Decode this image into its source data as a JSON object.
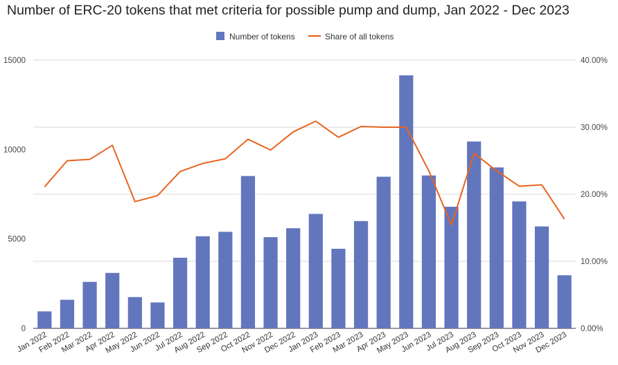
{
  "chart_data": {
    "type": "bar",
    "title": "Number of ERC-20 tokens that met criteria for possible pump and dump, Jan 2022 - Dec 2023",
    "categories": [
      "Jan 2022",
      "Feb 2022",
      "Mar 2022",
      "Apr 2022",
      "May 2022",
      "Jun 2022",
      "Jul 2022",
      "Aug 2022",
      "Sep 2022",
      "Oct 2022",
      "Nov 2022",
      "Dec 2022",
      "Jan 2023",
      "Feb 2023",
      "Mar 2023",
      "Apr 2023",
      "May 2023",
      "Jun 2023",
      "Jul 2023",
      "Aug 2023",
      "Sep 2023",
      "Oct 2023",
      "Nov 2023",
      "Dec 2023"
    ],
    "series": [
      {
        "name": "Number of tokens",
        "type": "bar",
        "axis": "left",
        "color": "#6276be",
        "values": [
          950,
          1600,
          2600,
          3100,
          1750,
          1450,
          3950,
          5150,
          5400,
          8520,
          5100,
          5600,
          6400,
          4450,
          6000,
          8480,
          14150,
          8550,
          6800,
          10450,
          9000,
          7100,
          5700,
          2970
        ]
      },
      {
        "name": "Share of all tokens",
        "type": "line",
        "axis": "right",
        "color": "#e8641e",
        "values": [
          21.1,
          25.0,
          25.2,
          27.3,
          18.9,
          19.8,
          23.4,
          24.6,
          25.3,
          28.2,
          26.6,
          29.3,
          30.9,
          28.5,
          30.1,
          30.0,
          30.0,
          23.5,
          15.4,
          26.1,
          23.5,
          21.2,
          21.4,
          16.3
        ]
      }
    ],
    "y_left": {
      "min": 0,
      "max": 15000,
      "ticks": [
        "0",
        "5000",
        "10000",
        "15000"
      ]
    },
    "y_right": {
      "min": 0,
      "max": 40,
      "ticks": [
        "0.00%",
        "10.00%",
        "20.00%",
        "30.00%",
        "40.00%"
      ]
    },
    "grid": true,
    "legend_position": "top-center"
  }
}
